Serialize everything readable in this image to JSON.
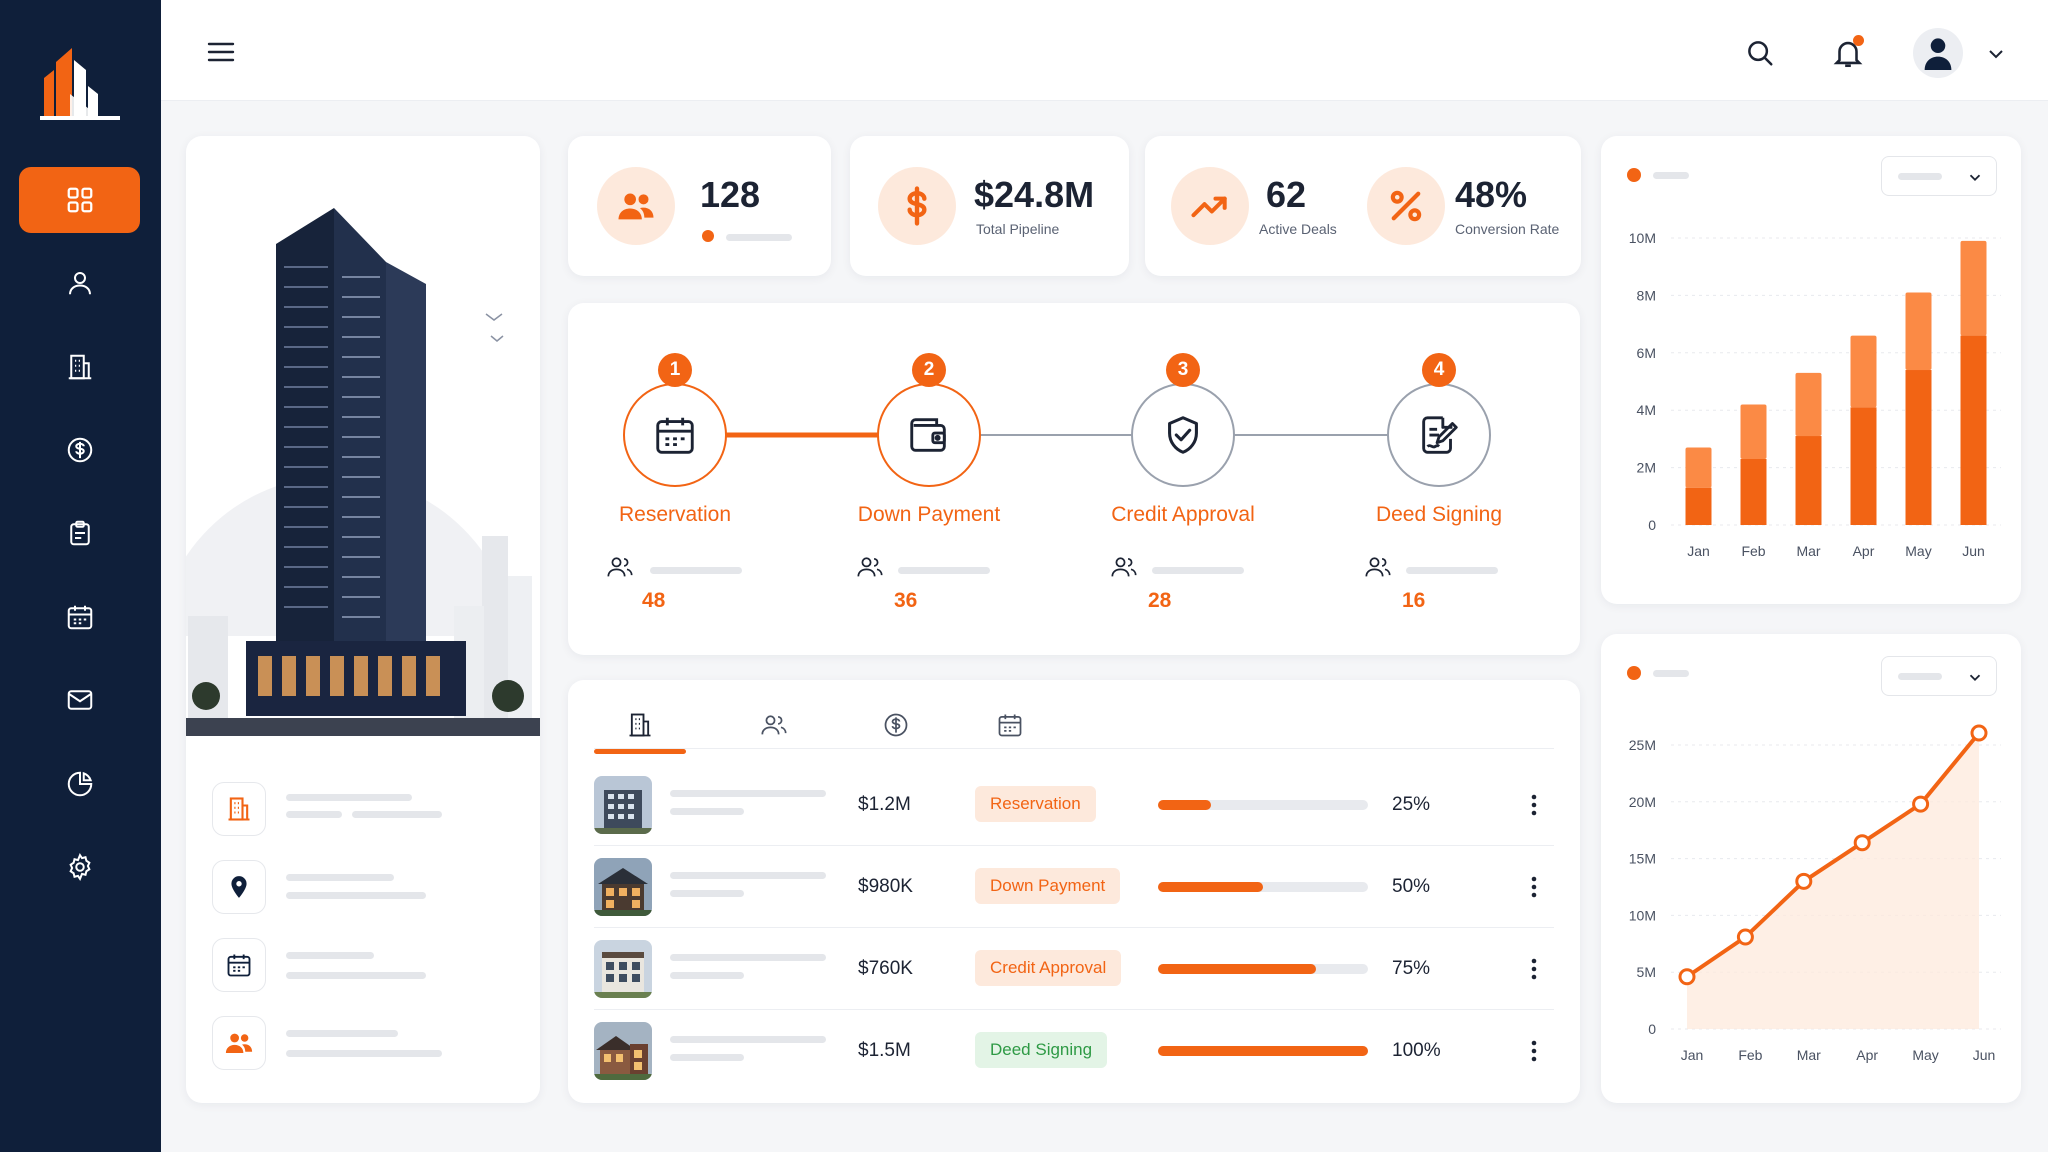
{
  "colors": {
    "accent": "#f26414",
    "accent_light": "#fb8a45",
    "sidebar_bg": "#0f1f3a",
    "success": "#2e9a45"
  },
  "sidebar": {
    "items": [
      {
        "icon": "grid-icon",
        "active": true
      },
      {
        "icon": "user-icon"
      },
      {
        "icon": "building-icon"
      },
      {
        "icon": "dollar-icon"
      },
      {
        "icon": "clipboard-icon"
      },
      {
        "icon": "calendar-icon"
      },
      {
        "icon": "mail-icon"
      },
      {
        "icon": "pie-chart-icon"
      },
      {
        "icon": "gear-icon"
      }
    ]
  },
  "stats": {
    "clients": {
      "value": "128",
      "icon": "users-icon"
    },
    "pipeline": {
      "value": "$24.8M",
      "label": "Total Pipeline",
      "icon": "dollar-icon"
    },
    "deals": {
      "value": "62",
      "label": "Active Deals",
      "icon": "trend-up-icon"
    },
    "conversion": {
      "value": "48%",
      "label": "Conversion Rate",
      "icon": "percent-icon"
    }
  },
  "pipeline": {
    "stages": [
      {
        "number": "1",
        "name": "Reservation",
        "count": "48",
        "icon": "calendar-icon"
      },
      {
        "number": "2",
        "name": "Down Payment",
        "count": "36",
        "icon": "wallet-icon"
      },
      {
        "number": "3",
        "name": "Credit Approval",
        "count": "28",
        "icon": "shield-check-icon"
      },
      {
        "number": "4",
        "name": "Deed Signing",
        "count": "16",
        "icon": "contract-sign-icon"
      }
    ],
    "completed_stages": 2
  },
  "deals": {
    "tabs": [
      {
        "icon": "building-icon",
        "active": true
      },
      {
        "icon": "users-icon"
      },
      {
        "icon": "dollar-icon"
      },
      {
        "icon": "calendar-icon"
      }
    ],
    "rows": [
      {
        "amount": "$1.2M",
        "status": "Reservation",
        "status_color": "orange",
        "progress": 25,
        "percent": "25%"
      },
      {
        "amount": "$980K",
        "status": "Down Payment",
        "status_color": "orange",
        "progress": 50,
        "percent": "50%"
      },
      {
        "amount": "$760K",
        "status": "Credit Approval",
        "status_color": "orange",
        "progress": 75,
        "percent": "75%"
      },
      {
        "amount": "$1.5M",
        "status": "Deed Signing",
        "status_color": "green",
        "progress": 100,
        "percent": "100%"
      }
    ]
  },
  "chart_data": [
    {
      "type": "bar",
      "stacked": true,
      "categories": [
        "Jan",
        "Feb",
        "Mar",
        "Apr",
        "May",
        "Jun"
      ],
      "series": [
        {
          "values": [
            1.3,
            2.3,
            3.1,
            4.1,
            5.4,
            6.6
          ]
        },
        {
          "values": [
            1.4,
            1.9,
            2.2,
            2.5,
            2.7,
            3.3
          ]
        }
      ],
      "y_ticks": [
        "0",
        "2M",
        "4M",
        "6M",
        "8M",
        "10M"
      ],
      "ylim": [
        0,
        10
      ],
      "grid": true,
      "legend": "top-left"
    },
    {
      "type": "area",
      "categories": [
        "Jan",
        "Feb",
        "Mar",
        "Apr",
        "May",
        "Jun"
      ],
      "values": [
        4.6,
        8.1,
        13.0,
        16.4,
        19.8,
        27.5
      ],
      "y_ticks": [
        "0",
        "5M",
        "10M",
        "15M",
        "20M",
        "25M"
      ],
      "ylim": [
        0,
        25
      ],
      "grid": true,
      "legend": "top-left"
    }
  ]
}
